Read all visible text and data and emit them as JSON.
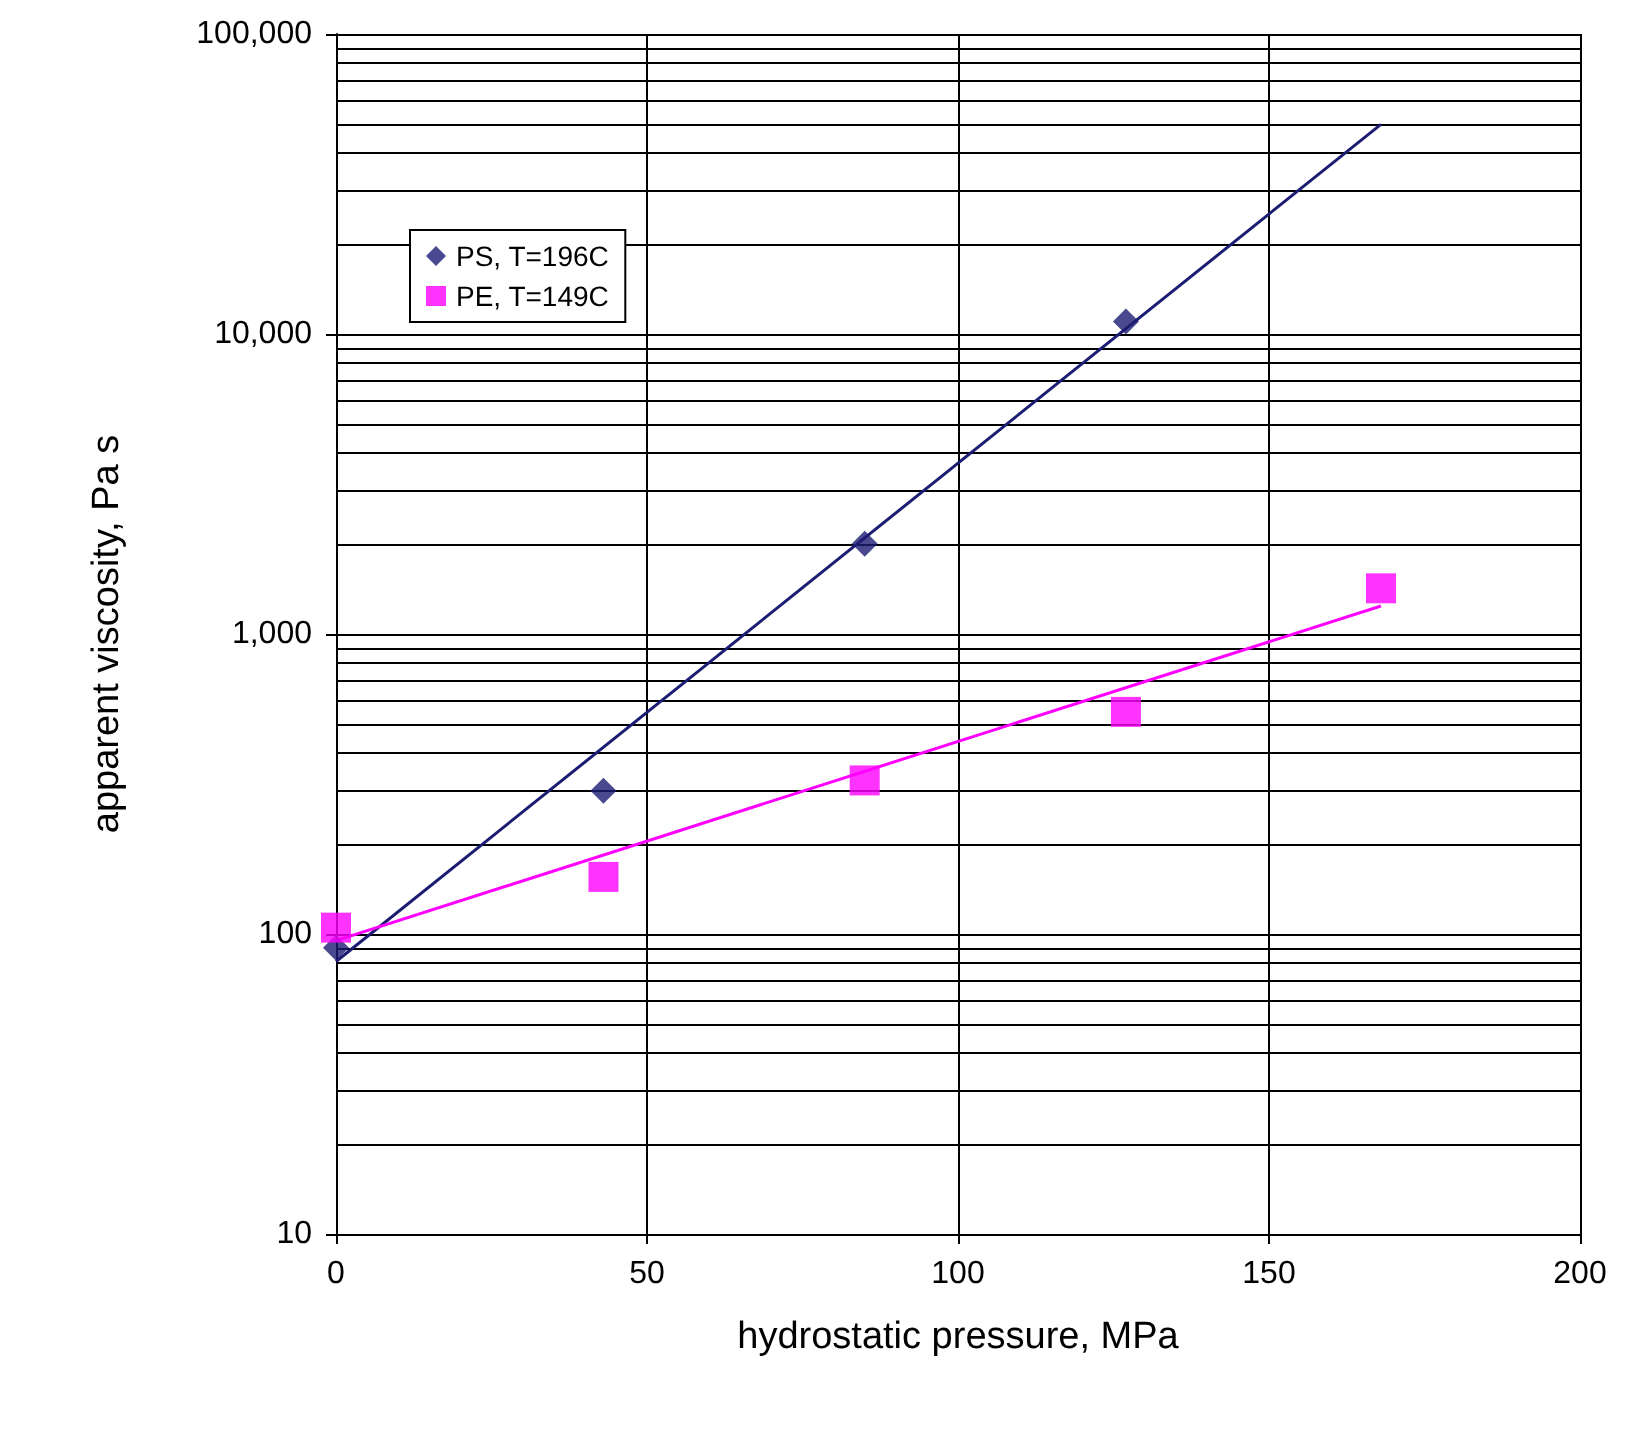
{
  "chart_data": {
    "type": "scatter",
    "xlabel": "hydrostatic pressure, MPa",
    "ylabel": "apparent viscosity, Pa s",
    "xlim": [
      0,
      200
    ],
    "xticks": [
      0,
      50,
      100,
      150,
      200
    ],
    "ylim": [
      10,
      100000
    ],
    "yticks": [
      10,
      100,
      {
        "value": 1000,
        "label": "1,000"
      },
      {
        "value": 10000,
        "label": "10,000"
      },
      {
        "value": 100000,
        "label": "100,000"
      }
    ],
    "log": "y",
    "grid": true,
    "legend": "top left",
    "series": [
      {
        "name": "PS, T=196C",
        "color": "#1c1c73",
        "marker": "diamond",
        "x": [
          0,
          43,
          85,
          127
        ],
        "values": [
          90,
          300,
          2000,
          11000
        ]
      },
      {
        "name": "PE, T=149C",
        "color": "#ff00ff",
        "marker": "square",
        "x": [
          0,
          43,
          85,
          127,
          168
        ],
        "values": [
          105,
          155,
          325,
          550,
          1420
        ]
      },
      {
        "color": "#1c1c73",
        "type": "line",
        "marker": "none",
        "x": [
          0,
          168
        ],
        "values": [
          81,
          50000
        ]
      },
      {
        "color": "#ff00ff",
        "type": "line",
        "marker": "none",
        "x": [
          0,
          168
        ],
        "values": [
          95,
          1240
        ]
      }
    ]
  }
}
